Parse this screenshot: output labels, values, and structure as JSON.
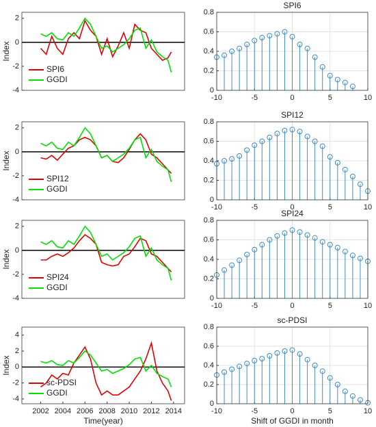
{
  "chart_data": [
    {
      "type": "line",
      "ylabel": "Index",
      "x": [
        2002,
        2002.5,
        2003,
        2003.5,
        2004,
        2004.5,
        2005,
        2005.5,
        2006,
        2006.5,
        2007,
        2007.5,
        2008,
        2008.5,
        2009,
        2009.5,
        2010,
        2010.5,
        2011,
        2011.5,
        2012,
        2012.5,
        2013,
        2013.5,
        2013.8
      ],
      "series": [
        {
          "name": "SPI6",
          "color": "#e00000",
          "values": [
            -0.5,
            -1,
            0.5,
            -0.5,
            -1,
            0.3,
            0.8,
            0.3,
            1.8,
            1.0,
            0.5,
            -1.0,
            0.3,
            -1.2,
            -0.3,
            0.8,
            -0.5,
            1.5,
            1.0,
            0.8,
            -0.5,
            -1.0,
            -1.5,
            -1.3,
            -0.8
          ]
        },
        {
          "name": "GGDI",
          "color": "#00e000",
          "values": [
            0.7,
            0.5,
            0.8,
            0.3,
            0.2,
            0.8,
            0.5,
            1.2,
            2.0,
            1.5,
            0.5,
            -0.5,
            -0.3,
            -0.8,
            -0.5,
            -0.2,
            0.3,
            1.0,
            1.2,
            -0.5,
            0.2,
            -0.8,
            -1.2,
            -1.5,
            -2.5
          ]
        }
      ],
      "xlim": [
        2000.3,
        2015
      ],
      "ylim": [
        -4,
        2.5
      ],
      "yticks": [
        -4,
        -2,
        0,
        2
      ],
      "reference_line": 0,
      "legend": "lower left"
    },
    {
      "type": "stem",
      "title": "SPI6",
      "color": "#3b8dc4",
      "x": [
        -10,
        -9,
        -8,
        -7,
        -6,
        -5,
        -4,
        -3,
        -2,
        -1,
        0,
        1,
        2,
        3,
        4,
        5,
        6,
        7,
        8
      ],
      "values": [
        0.34,
        0.36,
        0.4,
        0.43,
        0.47,
        0.51,
        0.54,
        0.56,
        0.58,
        0.6,
        0.55,
        0.47,
        0.43,
        0.34,
        0.24,
        0.15,
        0.11,
        0.08,
        0.04
      ],
      "xlim": [
        -10,
        10
      ],
      "xticks": [
        -10,
        -5,
        0,
        5,
        10
      ],
      "ylim": [
        0,
        0.8
      ],
      "yticks": [
        0,
        0.2,
        0.4,
        0.6,
        0.8
      ],
      "grid": true
    },
    {
      "type": "line",
      "ylabel": "Index",
      "x": [
        2002,
        2002.5,
        2003,
        2003.5,
        2004,
        2004.5,
        2005,
        2005.5,
        2006,
        2006.5,
        2007,
        2007.5,
        2008,
        2008.5,
        2009,
        2009.5,
        2010,
        2010.5,
        2011,
        2011.5,
        2012,
        2012.5,
        2013,
        2013.5,
        2013.8
      ],
      "series": [
        {
          "name": "SPI12",
          "color": "#e00000",
          "values": [
            -0.5,
            -0.6,
            -0.3,
            -0.7,
            -0.2,
            0.3,
            0.5,
            1.0,
            1.2,
            1.0,
            0.5,
            -0.5,
            -0.3,
            -0.8,
            -0.9,
            -0.5,
            0.2,
            1.0,
            1.5,
            1.0,
            -0.2,
            -0.5,
            -1.0,
            -1.5,
            -1.8
          ]
        },
        {
          "name": "GGDI",
          "color": "#00e000",
          "values": [
            0.7,
            0.5,
            0.8,
            0.3,
            0.2,
            0.8,
            0.5,
            1.2,
            2.0,
            1.5,
            0.5,
            -0.5,
            -0.3,
            -0.8,
            -0.5,
            -0.2,
            0.3,
            1.0,
            1.2,
            -0.5,
            0.2,
            -0.8,
            -1.2,
            -1.5,
            -2.5
          ]
        }
      ],
      "xlim": [
        2000.3,
        2015
      ],
      "ylim": [
        -4,
        2.5
      ],
      "yticks": [
        -4,
        -2,
        0,
        2
      ],
      "reference_line": 0,
      "legend": "lower left"
    },
    {
      "type": "stem",
      "title": "SPI12",
      "color": "#3b8dc4",
      "x": [
        -10,
        -9,
        -8,
        -7,
        -6,
        -5,
        -4,
        -3,
        -2,
        -1,
        0,
        1,
        2,
        3,
        4,
        5,
        6,
        7,
        8,
        9,
        10
      ],
      "values": [
        0.37,
        0.4,
        0.42,
        0.45,
        0.51,
        0.56,
        0.6,
        0.64,
        0.68,
        0.71,
        0.72,
        0.7,
        0.65,
        0.6,
        0.55,
        0.44,
        0.38,
        0.31,
        0.24,
        0.16,
        0.09
      ],
      "xlim": [
        -10,
        10
      ],
      "xticks": [
        -10,
        -5,
        0,
        5,
        10
      ],
      "ylim": [
        0,
        0.8
      ],
      "yticks": [
        0,
        0.2,
        0.4,
        0.6,
        0.8
      ],
      "grid": true
    },
    {
      "type": "line",
      "ylabel": "Index",
      "x": [
        2002,
        2002.5,
        2003,
        2003.5,
        2004,
        2004.5,
        2005,
        2005.5,
        2006,
        2006.5,
        2007,
        2007.5,
        2008,
        2008.5,
        2009,
        2009.5,
        2010,
        2010.5,
        2011,
        2011.5,
        2012,
        2012.5,
        2013,
        2013.5,
        2013.8
      ],
      "series": [
        {
          "name": "SPI24",
          "color": "#e00000",
          "values": [
            -0.8,
            -0.8,
            -0.5,
            -0.3,
            -0.5,
            -0.2,
            0.2,
            0.8,
            1.3,
            1.0,
            0.5,
            -1.0,
            -1.2,
            -1.3,
            -1.2,
            -0.5,
            -0.3,
            0.3,
            1.0,
            0.8,
            -0.3,
            -0.5,
            -1.0,
            -1.5,
            -1.8
          ]
        },
        {
          "name": "GGDI",
          "color": "#00e000",
          "values": [
            0.7,
            0.5,
            0.8,
            0.3,
            0.2,
            0.8,
            0.5,
            1.2,
            2.0,
            1.5,
            0.5,
            -0.5,
            -0.3,
            -0.8,
            -0.5,
            -0.2,
            0.3,
            1.0,
            1.2,
            -0.5,
            0.2,
            -0.8,
            -1.2,
            -1.5,
            -2.5
          ]
        }
      ],
      "xlim": [
        2000.3,
        2015
      ],
      "ylim": [
        -4,
        2.5
      ],
      "yticks": [
        -4,
        -2,
        0,
        2
      ],
      "reference_line": 0,
      "legend": "lower left"
    },
    {
      "type": "stem",
      "title": "SPI24",
      "color": "#3b8dc4",
      "x": [
        -10,
        -9,
        -8,
        -7,
        -6,
        -5,
        -4,
        -3,
        -2,
        -1,
        0,
        1,
        2,
        3,
        4,
        5,
        6,
        7,
        8,
        9,
        10
      ],
      "values": [
        0.24,
        0.29,
        0.34,
        0.39,
        0.45,
        0.5,
        0.55,
        0.6,
        0.64,
        0.67,
        0.7,
        0.68,
        0.65,
        0.62,
        0.58,
        0.55,
        0.52,
        0.48,
        0.44,
        0.41,
        0.38
      ],
      "xlim": [
        -10,
        10
      ],
      "xticks": [
        -10,
        -5,
        0,
        5,
        10
      ],
      "ylim": [
        0,
        0.8
      ],
      "yticks": [
        0,
        0.2,
        0.4,
        0.6,
        0.8
      ],
      "grid": true
    },
    {
      "type": "line",
      "ylabel": "Index",
      "xlabel": "Time(year)",
      "x": [
        2002,
        2002.5,
        2003,
        2003.5,
        2004,
        2004.5,
        2005,
        2005.5,
        2006,
        2006.5,
        2007,
        2007.5,
        2008,
        2008.5,
        2009,
        2009.5,
        2010,
        2010.5,
        2011,
        2011.5,
        2012,
        2012.5,
        2013,
        2013.5,
        2013.8
      ],
      "series": [
        {
          "name": "sc-PDSI",
          "color": "#e00000",
          "values": [
            -2.5,
            -2,
            -1,
            -1.5,
            -0.8,
            -1,
            0.5,
            1.5,
            2.5,
            1,
            -2,
            -3.5,
            -3,
            -3.5,
            -3.5,
            -3,
            -2.5,
            -1.5,
            -0.5,
            1.0,
            3.0,
            -0.5,
            -2,
            -3,
            -4.2
          ]
        },
        {
          "name": "GGDI",
          "color": "#00e000",
          "values": [
            0.7,
            0.5,
            0.8,
            0.3,
            0.2,
            0.8,
            0.5,
            1.2,
            2.0,
            1.5,
            0.5,
            -0.5,
            -0.3,
            -0.8,
            -0.5,
            -0.2,
            0.3,
            1.0,
            1.2,
            -0.5,
            0.2,
            -0.8,
            -1.2,
            -1.5,
            -2.5
          ]
        }
      ],
      "xlim": [
        2000.3,
        2015
      ],
      "xticks": [
        2002,
        2004,
        2006,
        2008,
        2010,
        2012,
        2014
      ],
      "ylim": [
        -4.6,
        5
      ],
      "yticks": [
        -4,
        -2,
        0,
        2,
        4
      ],
      "reference_line": 0,
      "legend": "lower left"
    },
    {
      "type": "stem",
      "title": "sc-PDSI",
      "color": "#3b8dc4",
      "xlabel": "Shift of GGDI in month",
      "x": [
        -10,
        -9,
        -8,
        -7,
        -6,
        -5,
        -4,
        -3,
        -2,
        -1,
        0,
        1,
        2,
        3,
        4,
        5,
        6,
        7,
        8,
        9,
        10
      ],
      "values": [
        0.3,
        0.33,
        0.36,
        0.39,
        0.42,
        0.45,
        0.47,
        0.5,
        0.53,
        0.55,
        0.56,
        0.52,
        0.46,
        0.4,
        0.34,
        0.27,
        0.2,
        0.13,
        0.08,
        0.04,
        0.01
      ],
      "xlim": [
        -10,
        10
      ],
      "xticks": [
        -10,
        -5,
        0,
        5,
        10
      ],
      "ylim": [
        0,
        0.8
      ],
      "yticks": [
        0,
        0.2,
        0.4,
        0.6,
        0.8
      ],
      "grid": true
    }
  ]
}
